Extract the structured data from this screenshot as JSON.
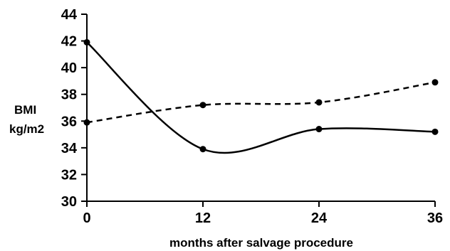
{
  "chart_data": {
    "type": "line",
    "title": "",
    "xlabel": "months after salvage procedure",
    "ylabel_lines": [
      "BMI",
      "kg/m2"
    ],
    "x": [
      0,
      12,
      24,
      36
    ],
    "x_ticks": [
      "0",
      "12",
      "24",
      "36"
    ],
    "y_ticks": [
      "30",
      "32",
      "34",
      "36",
      "38",
      "40",
      "42",
      "44"
    ],
    "ylim": [
      30,
      44
    ],
    "xlim": [
      0,
      36
    ],
    "grid": false,
    "series": [
      {
        "style": "solid",
        "values": [
          41.9,
          33.9,
          35.4,
          35.2
        ],
        "color": "#000000"
      },
      {
        "style": "dashed",
        "values": [
          35.9,
          37.2,
          37.4,
          38.9
        ],
        "color": "#000000"
      }
    ]
  }
}
